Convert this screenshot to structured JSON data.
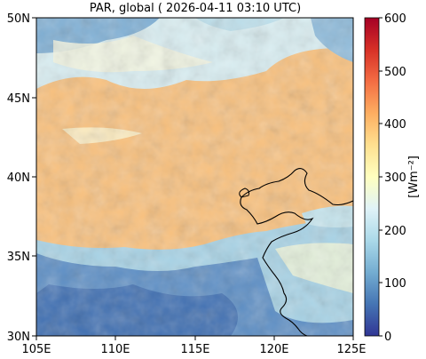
{
  "title": "PAR, global ( 2026-04-11 03:10 UTC)",
  "lat_ticks": [
    "50N",
    "45N",
    "40N",
    "35N",
    "30N"
  ],
  "lon_ticks": [
    "105E",
    "110E",
    "115E",
    "120E",
    "125E"
  ],
  "colorbar": {
    "label": "[Wm⁻²]",
    "ticks": [
      "600",
      "500",
      "400",
      "300",
      "200",
      "100",
      "0"
    ],
    "range": [
      0,
      600
    ],
    "colormap": [
      "#313695",
      "#4575b4",
      "#74add1",
      "#abd9e9",
      "#e0f3f8",
      "#ffffbf",
      "#fee090",
      "#fdae61",
      "#f46d43",
      "#d73027",
      "#a50026"
    ]
  },
  "map": {
    "extent": {
      "lon": [
        105,
        125
      ],
      "lat": [
        30,
        50
      ]
    },
    "dominant_value_color": "#fbc07a",
    "clouds_color": "#4e86c4"
  }
}
